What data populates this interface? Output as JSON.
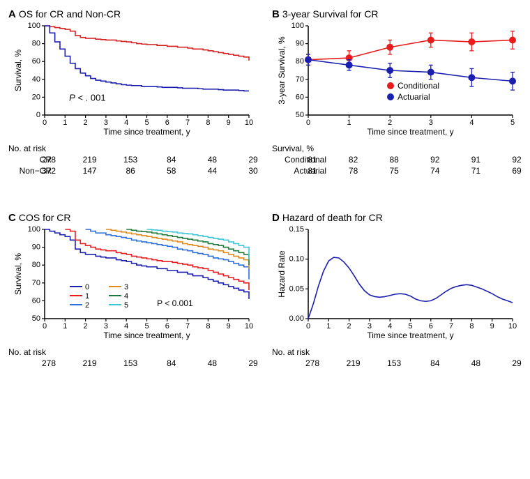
{
  "figure": {
    "background_color": "#ffffff",
    "axis_color": "#000000",
    "font_family": "Arial",
    "total_width": 760,
    "total_height": 687
  },
  "panelA": {
    "letter": "A",
    "title": "OS for CR and Non-CR",
    "xlabel": "Time since treatment, y",
    "ylabel": "Survival, %",
    "xlim": [
      0,
      10
    ],
    "xtick_step": 1,
    "ylim": [
      0,
      100
    ],
    "ytick_step": 20,
    "p_text": "P < . 001",
    "p_fontstyle": "italic",
    "series": {
      "CR": {
        "color": "#d82020",
        "linewidth": 1.6,
        "y": [
          100,
          99,
          98,
          97,
          96,
          94,
          89,
          87,
          86,
          86,
          85,
          84.5,
          84,
          84,
          83,
          82.5,
          82,
          81,
          80,
          79.5,
          79,
          79,
          78,
          78,
          77,
          77,
          76,
          76,
          75,
          74,
          74,
          73,
          72,
          71,
          70,
          69,
          68,
          67,
          66,
          65,
          61
        ]
      },
      "NonCR": {
        "color": "#1a1fb0",
        "linewidth": 1.6,
        "y": [
          100,
          92,
          82,
          74,
          66,
          58,
          52,
          47,
          44,
          41,
          39,
          38,
          37,
          36,
          35,
          34,
          33.5,
          33,
          33,
          32,
          32,
          32,
          31.5,
          31,
          31,
          31,
          30.5,
          30,
          30,
          30,
          29.5,
          29,
          29,
          29,
          28.5,
          28,
          28,
          28,
          27.5,
          27,
          27
        ]
      }
    },
    "risk_header": "No. at risk",
    "risk_xticks": [
      0,
      2,
      4,
      6,
      8,
      10
    ],
    "risk_rows": [
      {
        "label": "CR",
        "values": [
          278,
          219,
          153,
          84,
          48,
          29
        ]
      },
      {
        "label": "Non−CR",
        "values": [
          372,
          147,
          86,
          58,
          44,
          30
        ]
      }
    ]
  },
  "panelB": {
    "letter": "B",
    "title": "3-year Survival for CR",
    "xlabel": "Time since treatment, y",
    "ylabel": "3-year Survival, %",
    "xlim": [
      0,
      5
    ],
    "xtick_step": 1,
    "ylim": [
      50,
      100
    ],
    "ytick_step": 10,
    "series": {
      "Conditional": {
        "color": "#e81c1c",
        "marker": "circle",
        "marker_size": 5,
        "x": [
          0,
          1,
          2,
          3,
          4,
          5
        ],
        "y": [
          81,
          82,
          88,
          92,
          91,
          92
        ],
        "err": [
          3,
          4,
          4,
          4,
          5,
          5
        ]
      },
      "Actuarial": {
        "color": "#1a1fb0",
        "marker": "circle",
        "marker_size": 5,
        "x": [
          0,
          1,
          2,
          3,
          4,
          5
        ],
        "y": [
          81,
          78,
          75,
          74,
          71,
          69
        ],
        "err": [
          3,
          3,
          4,
          4,
          5,
          5
        ]
      }
    },
    "legend_items": [
      {
        "label": "Conditional",
        "color": "#e81c1c"
      },
      {
        "label": "Actuarial",
        "color": "#1a1fb0"
      }
    ],
    "risk_header": "Survival, %",
    "risk_xticks": [
      0,
      1,
      2,
      3,
      4,
      5
    ],
    "risk_rows": [
      {
        "label": "Conditional",
        "values": [
          81,
          82,
          88,
          92,
          91,
          92
        ]
      },
      {
        "label": "Actuarial",
        "values": [
          81,
          78,
          75,
          74,
          71,
          69
        ]
      }
    ]
  },
  "panelC": {
    "letter": "C",
    "title": "COS for CR",
    "xlabel": "Time since treatment, y",
    "ylabel": "Survival, %",
    "xlim": [
      0,
      10
    ],
    "xtick_step": 1,
    "ylim": [
      50,
      100
    ],
    "ytick_step": 10,
    "p_text": "P < 0.001",
    "legend_title": null,
    "series": [
      {
        "label": "0",
        "color": "#1a1fb0",
        "start": 0,
        "y": [
          100,
          99,
          98,
          97,
          96,
          94,
          89,
          87,
          86,
          86,
          85,
          84.5,
          84,
          84,
          83,
          82.5,
          82,
          81,
          80,
          79.5,
          79,
          79,
          78,
          78,
          77,
          77,
          76,
          76,
          75,
          74,
          74,
          73,
          72,
          71,
          70,
          69,
          68,
          67,
          66,
          65,
          61
        ]
      },
      {
        "label": "1",
        "color": "#e81c1c",
        "start": 1,
        "y": [
          100,
          99,
          94,
          92,
          91,
          90,
          89,
          88.5,
          88,
          88,
          87,
          86.5,
          86,
          85,
          84.5,
          84,
          83.5,
          83,
          82.5,
          82,
          82,
          81.5,
          81,
          80.5,
          80,
          79,
          78.5,
          78,
          77,
          76,
          75,
          74,
          73,
          72,
          71,
          70,
          66
        ]
      },
      {
        "label": "2",
        "color": "#2a6fdc",
        "start": 2,
        "y": [
          100,
          99,
          98,
          98,
          97,
          96.5,
          96,
          95.5,
          95,
          94,
          93.5,
          93,
          92.5,
          92,
          91.5,
          91,
          90.5,
          90,
          89,
          88.5,
          88,
          87,
          86.5,
          86,
          85,
          84,
          83.5,
          83,
          82,
          81,
          80,
          79,
          72
        ]
      },
      {
        "label": "3",
        "color": "#e08a1c",
        "start": 3,
        "y": [
          100,
          99.5,
          99,
          98.5,
          98,
          97.5,
          97,
          96.5,
          96,
          95.5,
          95,
          94.5,
          94,
          93.5,
          93,
          92,
          91.5,
          91,
          90.5,
          90,
          89,
          88.5,
          88,
          87,
          86,
          85,
          84,
          83,
          78
        ]
      },
      {
        "label": "4",
        "color": "#1f7a3a",
        "start": 4,
        "y": [
          100,
          99.5,
          99,
          98.8,
          98.5,
          98,
          97.5,
          97,
          96.5,
          96,
          95.5,
          95,
          94.5,
          94,
          93.5,
          93,
          92,
          91.5,
          91,
          90,
          89,
          88,
          87,
          86,
          80
        ]
      },
      {
        "label": "5",
        "color": "#3cc7d6",
        "start": 5,
        "y": [
          100,
          99.7,
          99.5,
          99,
          98.7,
          98.5,
          98,
          97.7,
          97.5,
          97,
          96.5,
          96,
          95.5,
          95,
          94.5,
          94,
          93,
          92,
          91,
          90,
          83
        ]
      }
    ],
    "risk_header": "No. at risk",
    "risk_xticks": [
      0,
      2,
      4,
      6,
      8,
      10
    ],
    "risk_rows": [
      {
        "label": "",
        "values": [
          278,
          219,
          153,
          84,
          48,
          29
        ]
      }
    ]
  },
  "panelD": {
    "letter": "D",
    "title": "Hazard of death for CR",
    "xlabel": "Time since treatment, y",
    "ylabel": "Hazard Rate",
    "xlim": [
      0,
      10
    ],
    "xtick_step": 1,
    "ylim": [
      0,
      0.15
    ],
    "ytick_step": 0.05,
    "series": {
      "hazard": {
        "color": "#1a1fb0",
        "linewidth": 1.8,
        "x_step": 0.25,
        "y": [
          0,
          0.025,
          0.055,
          0.08,
          0.097,
          0.103,
          0.102,
          0.095,
          0.085,
          0.072,
          0.058,
          0.047,
          0.04,
          0.037,
          0.036,
          0.037,
          0.039,
          0.041,
          0.042,
          0.041,
          0.038,
          0.033,
          0.03,
          0.029,
          0.03,
          0.034,
          0.04,
          0.046,
          0.051,
          0.054,
          0.056,
          0.057,
          0.056,
          0.053,
          0.05,
          0.046,
          0.042,
          0.037,
          0.033,
          0.03,
          0.027
        ]
      }
    },
    "risk_header": "No. at risk",
    "risk_xticks": [
      0,
      2,
      4,
      6,
      8,
      10
    ],
    "risk_rows": [
      {
        "label": "",
        "values": [
          278,
          219,
          153,
          84,
          48,
          29
        ]
      }
    ]
  }
}
